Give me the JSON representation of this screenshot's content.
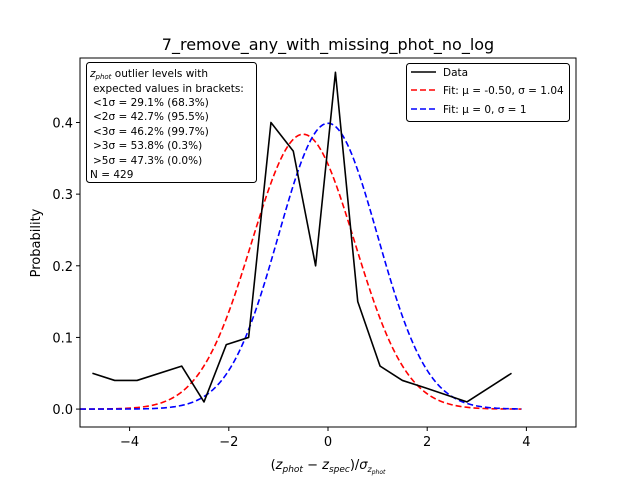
{
  "chart_data": {
    "type": "line",
    "title": "7_remove_any_with_missing_phot_no_log",
    "xlabel": "(z_phot − z_spec)/σ_z_phot",
    "ylabel": "Probability",
    "xlim": [
      -5,
      5
    ],
    "ylim": [
      -0.025,
      0.49
    ],
    "xticks": [
      -4,
      -2,
      0,
      2,
      4
    ],
    "xtick_labels": [
      "−4",
      "−2",
      "0",
      "2",
      "4"
    ],
    "yticks": [
      0.0,
      0.1,
      0.2,
      0.3,
      0.4
    ],
    "ytick_labels": [
      "0.0",
      "0.1",
      "0.2",
      "0.3",
      "0.4"
    ],
    "grid": false,
    "legend_position": "top-right",
    "series": [
      {
        "name": "Data",
        "color": "#000000",
        "style": "solid",
        "x": [
          -4.75,
          -4.3,
          -3.85,
          -2.95,
          -2.5,
          -2.05,
          -1.6,
          -1.15,
          -0.7,
          -0.25,
          0.15,
          0.6,
          1.05,
          1.5,
          1.95,
          2.8,
          3.7
        ],
        "y": [
          0.05,
          0.04,
          0.04,
          0.06,
          0.01,
          0.09,
          0.1,
          0.4,
          0.36,
          0.2,
          0.47,
          0.15,
          0.06,
          0.04,
          0.03,
          0.01,
          0.05
        ]
      },
      {
        "name": "Fit: μ=-0.50, σ=1.04",
        "color": "#ff0000",
        "style": "dashed",
        "function": "gaussian",
        "mu": -0.5,
        "sigma": 1.04,
        "x_range": [
          -5,
          3.9
        ]
      },
      {
        "name": "Fit: μ=0, σ=1",
        "color": "#0000ff",
        "style": "dashed",
        "function": "gaussian",
        "mu": 0,
        "sigma": 1,
        "x_range": [
          -5,
          3.9
        ]
      }
    ],
    "legend_entries": [
      {
        "label": "Data",
        "color": "#000000",
        "dashed": false
      },
      {
        "label": "Fit: μ = -0.50, σ = 1.04",
        "color": "#ff0000",
        "dashed": true
      },
      {
        "label": "Fit: μ = 0, σ = 1",
        "color": "#0000ff",
        "dashed": true
      }
    ],
    "annotation": {
      "header_1": "z_phot outlier levels with",
      "header_2": "expected values in brackets:",
      "lines": [
        "<1σ = 29.1% (68.3%)",
        "<2σ = 42.7% (95.5%)",
        "<3σ = 46.2% (99.7%)",
        ">3σ = 53.8% (0.3%)",
        ">5σ = 47.3% (0.0%)"
      ],
      "count": "N = 429"
    }
  }
}
